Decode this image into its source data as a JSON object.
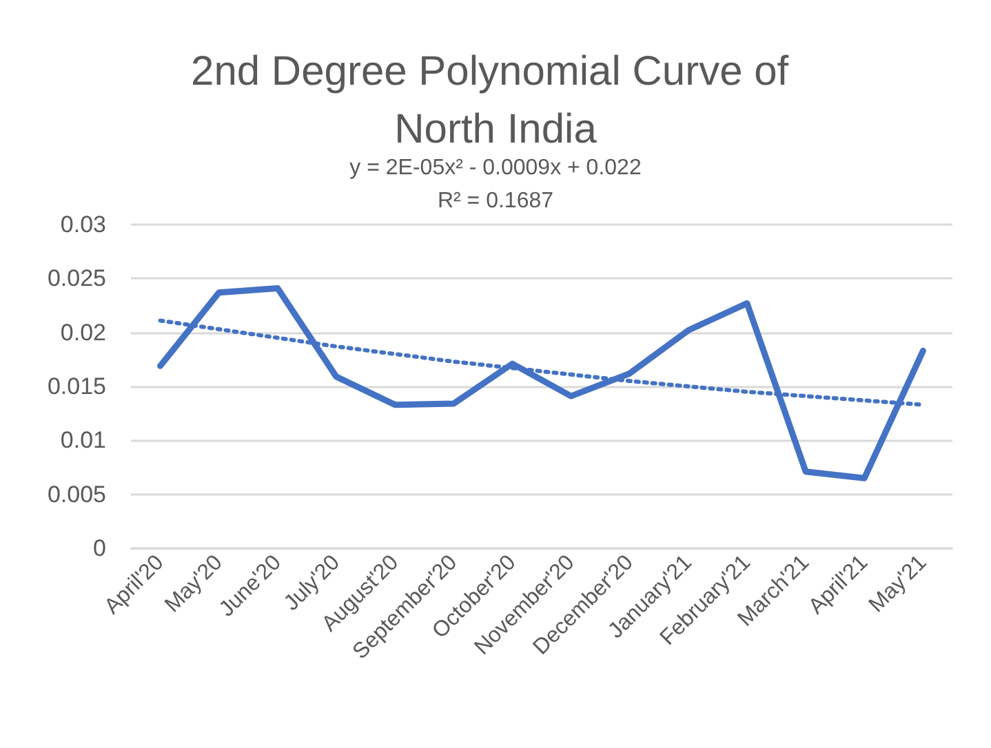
{
  "chart_data": {
    "type": "line",
    "title": "2nd Degree Polynomial Curve of North India",
    "annotations": [
      "y = 2E-05x² - 0.0009x + 0.022",
      "R² = 0.1687"
    ],
    "categories": [
      "April'20",
      "May'20",
      "June'20",
      "July'20",
      "August'20",
      "September'20",
      "October'20",
      "November'20",
      "December'20",
      "January'21",
      "February'21",
      "March'21",
      "April'21",
      "May'21"
    ],
    "series": [
      {
        "color": "#4472c4",
        "values": [
          0.0169,
          0.0237,
          0.0241,
          0.0159,
          0.0133,
          0.0134,
          0.0171,
          0.0141,
          0.0162,
          0.0202,
          0.0227,
          0.0071,
          0.0065,
          0.0183
        ]
      },
      {
        "color": "#4472c4",
        "line_style": "dotted",
        "values": [
          0.0211,
          0.0203,
          0.0195,
          0.0187,
          0.018,
          0.0173,
          0.0167,
          0.0161,
          0.0155,
          0.015,
          0.0145,
          0.0141,
          0.0137,
          0.0133
        ]
      }
    ],
    "ylim": [
      0,
      0.03
    ],
    "yticks": [
      0,
      0.005,
      0.01,
      0.015,
      0.02,
      0.025,
      0.03
    ],
    "grid": "y",
    "marker": "none"
  }
}
